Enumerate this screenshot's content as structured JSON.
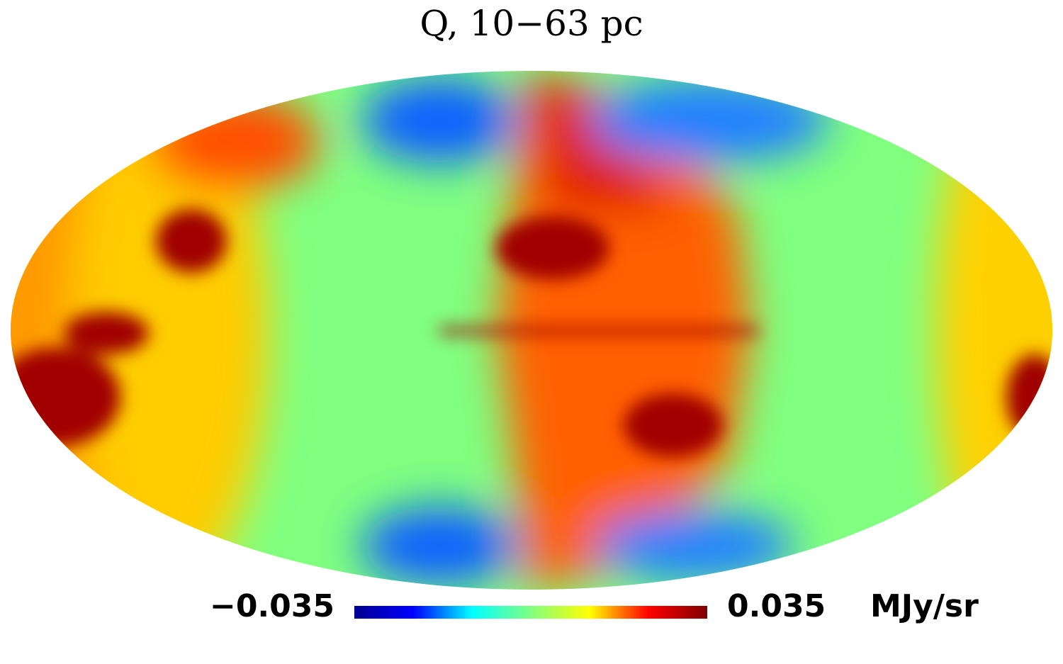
{
  "title": "Q,  10−63 pc",
  "colorbar": {
    "lim": [
      -0.035,
      0.035
    ],
    "ticks": [
      {
        "value": -0.035,
        "label": "−0.035"
      },
      0.035
    ],
    "unit": "MJy/sr",
    "colormap": "jet"
  }
}
